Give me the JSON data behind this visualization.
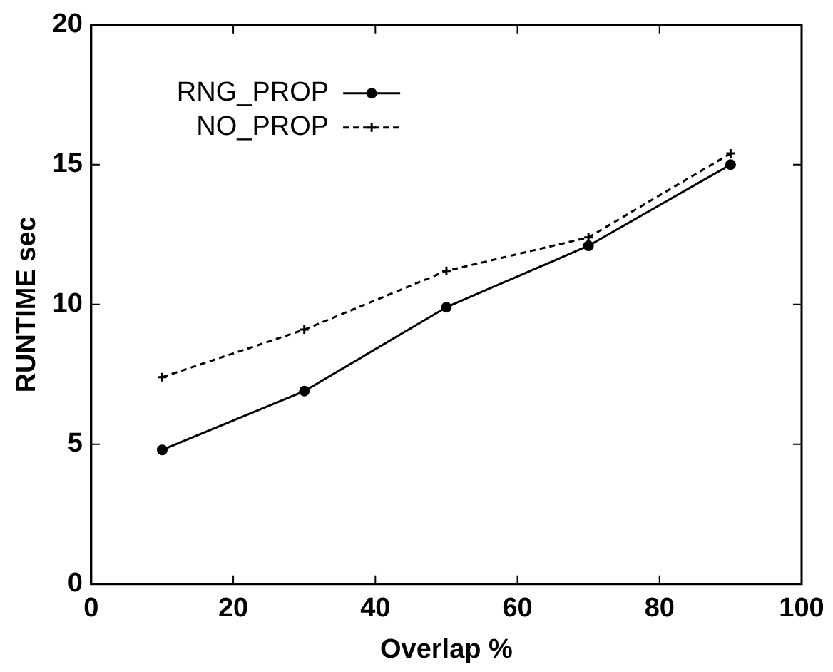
{
  "chart_data": {
    "type": "line",
    "xlabel": "Overlap %",
    "ylabel": "RUNTIME sec",
    "x": [
      10,
      30,
      50,
      70,
      90
    ],
    "series": [
      {
        "name": "RNG_PROP",
        "color": "#000000",
        "values": [
          4.8,
          6.9,
          9.9,
          12.1,
          15.0
        ],
        "marker": "circle",
        "line_style": "solid"
      },
      {
        "name": "NO_PROP",
        "color": "#000000",
        "values": [
          7.4,
          9.1,
          11.2,
          12.4,
          15.4
        ],
        "marker": "cross",
        "line_style": "dashed"
      }
    ],
    "xlim": [
      0,
      100
    ],
    "xticks": [
      0,
      20,
      40,
      60,
      80,
      100
    ],
    "ylim": [
      0,
      20
    ],
    "yticks": [
      0,
      5,
      10,
      15,
      20
    ],
    "grid": false,
    "legend": "top left"
  }
}
